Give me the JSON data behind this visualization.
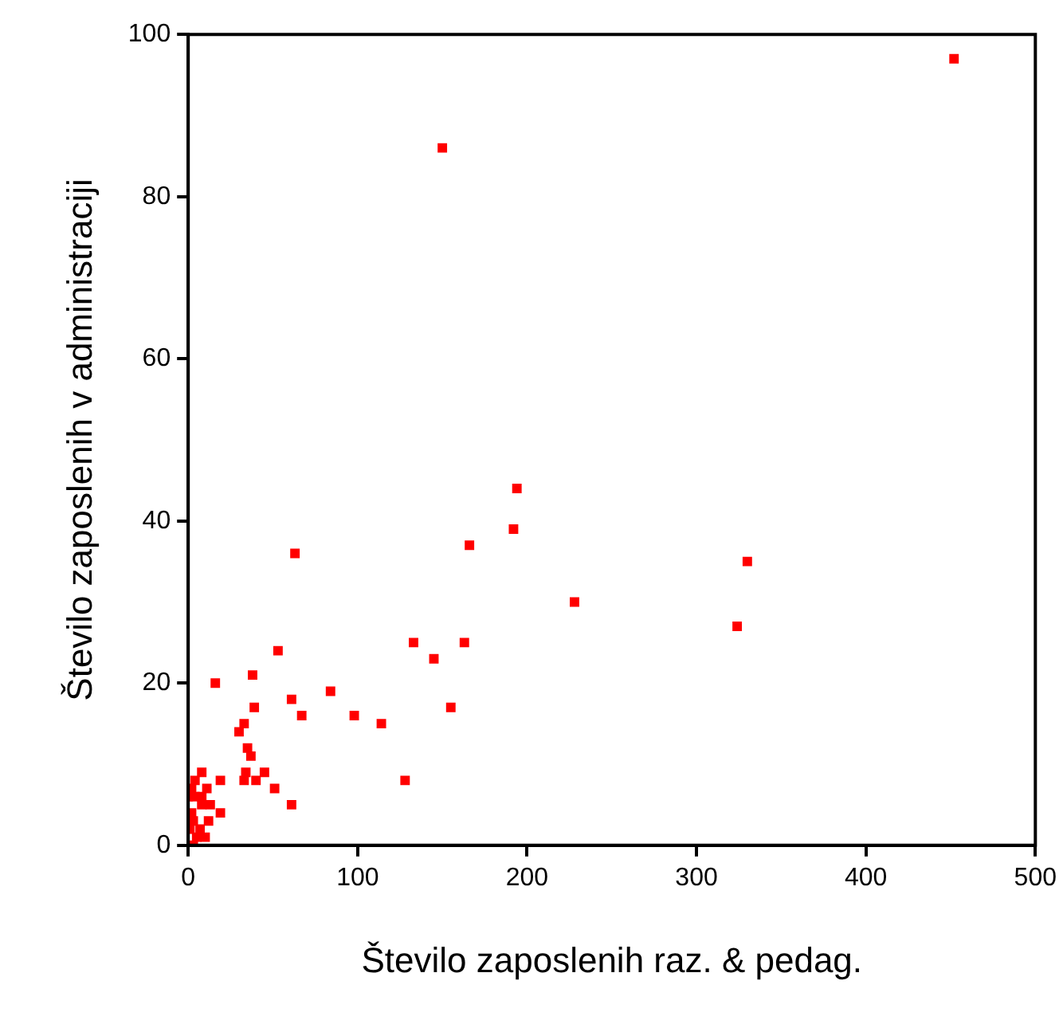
{
  "chart_data": {
    "type": "scatter",
    "xlabel": "Število zaposlenih raz. & pedag.",
    "ylabel": "Število zaposlenih v administraciji",
    "xlim": [
      0,
      500
    ],
    "xticks": [
      0,
      100,
      200,
      300,
      400,
      500
    ],
    "ylim": [
      0,
      100
    ],
    "yticks": [
      0,
      20,
      40,
      60,
      80,
      100
    ],
    "grid": false,
    "legend": false,
    "marker": "square",
    "series": [
      {
        "color": "#ff0000",
        "x": [
          452,
          150,
          330,
          324,
          228,
          194,
          192,
          166,
          163,
          155,
          145,
          133,
          128,
          114,
          98,
          84,
          67,
          63,
          61,
          61,
          53,
          51,
          45,
          40,
          39,
          38,
          37,
          35,
          34,
          33,
          33,
          30,
          19,
          19,
          16,
          13,
          12,
          11,
          10,
          8,
          8,
          8,
          4,
          4,
          3,
          3,
          2,
          2,
          1,
          0,
          7,
          5
        ],
        "values": [
          97,
          86,
          35,
          27,
          30,
          44,
          39,
          37,
          25,
          17,
          23,
          25,
          8,
          15,
          16,
          19,
          16,
          36,
          18,
          5,
          24,
          7,
          9,
          8,
          17,
          21,
          11,
          12,
          9,
          8,
          15,
          14,
          8,
          4,
          20,
          5,
          3,
          7,
          1,
          9,
          5,
          6,
          8,
          6,
          3,
          0,
          4,
          7,
          2,
          6,
          2,
          1
        ]
      }
    ]
  }
}
